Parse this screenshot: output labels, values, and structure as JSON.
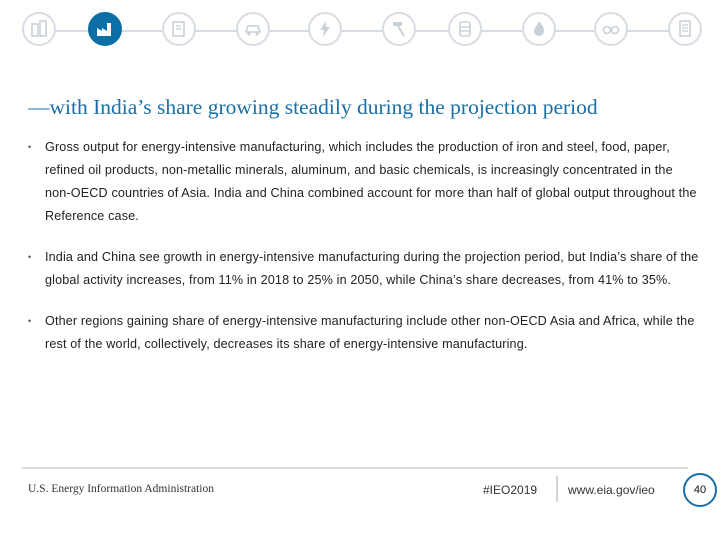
{
  "nav_icons": [
    {
      "name": "buildings-icon",
      "active": false
    },
    {
      "name": "industry-icon",
      "active": true
    },
    {
      "name": "documents-icon",
      "active": false
    },
    {
      "name": "car-icon",
      "active": false
    },
    {
      "name": "lightning-icon",
      "active": false
    },
    {
      "name": "hammer-icon",
      "active": false
    },
    {
      "name": "oil-drop-icon",
      "active": false
    },
    {
      "name": "barrel-icon",
      "active": false
    },
    {
      "name": "flame-icon",
      "active": false
    },
    {
      "name": "glasses-icon",
      "active": false
    },
    {
      "name": "report-icon",
      "active": false
    }
  ],
  "colors": {
    "accent": "#1a6fa6",
    "active_icon": "#0b6fa6",
    "inactive_icon": "#c9d1d8"
  },
  "heading": "—with India’s share growing steadily during the projection period",
  "bullets": [
    "Gross output for energy-intensive manufacturing, which includes the production of iron and steel, food, paper, refined oil products, non-metallic minerals, aluminum, and basic chemicals, is increasingly concentrated in the non-OECD countries of Asia. India and China combined account for more than half of global output throughout the Reference case.",
    "India and China see growth in energy-intensive manufacturing during the projection period, but India’s share of the global activity increases, from 11% in 2018 to 25% in 2050, while China’s share decreases, from 41% to 35%.",
    "Other regions gaining share of energy-intensive manufacturing include other non-OECD Asia and Africa, while the rest of the world, collectively, decreases its share of energy-intensive manufacturing."
  ],
  "bullet_marker": "•",
  "footer": {
    "agency": "U.S. Energy Information Administration",
    "hashtag": "#IEO2019",
    "url": "www.eia.gov/ieo",
    "page_number": "40"
  }
}
